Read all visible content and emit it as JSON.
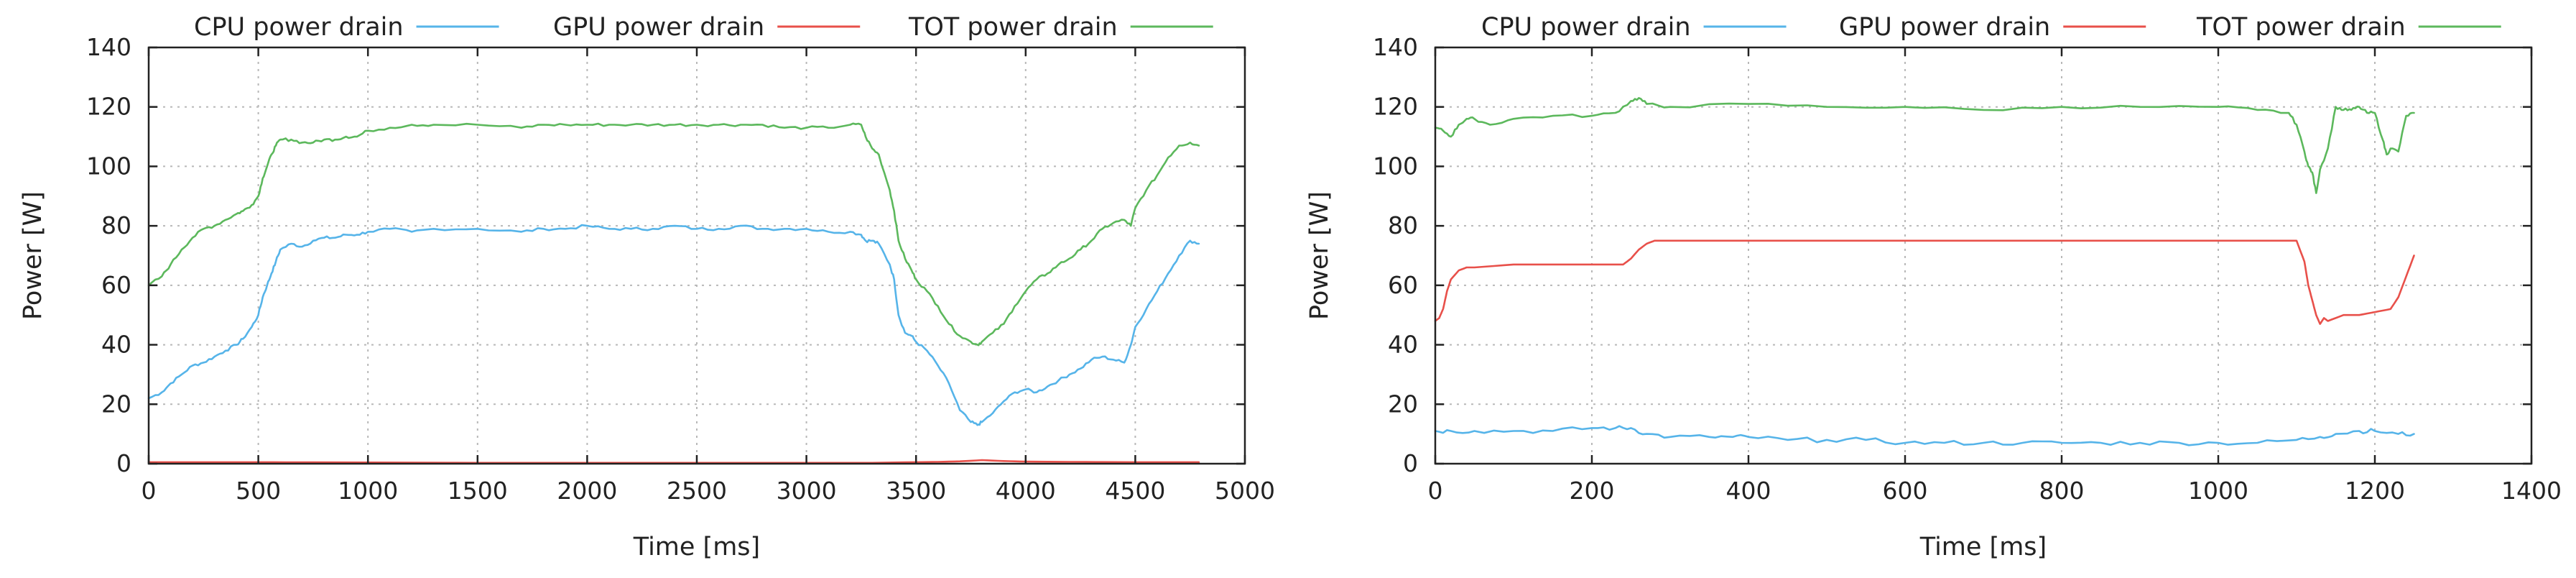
{
  "colors": {
    "cpu": "#56b4e9",
    "gpu": "#e8504a",
    "tot": "#5cb85c"
  },
  "chart_data": [
    {
      "type": "line",
      "title": "",
      "xlabel": "Time [ms]",
      "ylabel": "Power [W]",
      "xlim": [
        0,
        5000
      ],
      "ylim": [
        0,
        140
      ],
      "xticks": [
        0,
        500,
        1000,
        1500,
        2000,
        2500,
        3000,
        3500,
        4000,
        4500,
        5000
      ],
      "yticks": [
        0,
        20,
        40,
        60,
        80,
        100,
        120,
        140
      ],
      "grid": true,
      "legend_position": "top",
      "series": [
        {
          "name": "CPU power drain",
          "color_key": "cpu",
          "x": [
            0,
            60,
            100,
            150,
            200,
            250,
            300,
            350,
            400,
            430,
            470,
            500,
            520,
            540,
            560,
            580,
            600,
            650,
            700,
            750,
            800,
            850,
            900,
            950,
            1000,
            1100,
            1200,
            1300,
            1500,
            1700,
            1800,
            1900,
            2000,
            2100,
            2200,
            2300,
            2400,
            2500,
            2600,
            2700,
            2800,
            2900,
            3000,
            3100,
            3200,
            3250,
            3270,
            3300,
            3330,
            3380,
            3400,
            3420,
            3450,
            3480,
            3500,
            3550,
            3600,
            3650,
            3700,
            3750,
            3780,
            3800,
            3850,
            3900,
            3950,
            4000,
            4050,
            4100,
            4150,
            4200,
            4250,
            4300,
            4350,
            4400,
            4450,
            4480,
            4500,
            4550,
            4600,
            4650,
            4700,
            4750,
            4790
          ],
          "y": [
            22,
            24,
            27,
            30,
            33,
            34,
            36,
            38,
            40,
            42,
            46,
            50,
            56,
            60,
            64,
            68,
            72,
            74,
            73,
            75,
            76,
            76,
            77,
            77,
            78,
            79,
            78,
            79,
            79,
            78,
            79,
            79,
            80,
            79,
            79,
            79,
            80,
            79,
            79,
            80,
            79,
            79,
            79,
            78,
            78,
            77,
            75,
            75,
            74,
            67,
            62,
            50,
            44,
            43,
            41,
            38,
            33,
            27,
            18,
            14,
            13,
            14,
            17,
            21,
            24,
            25,
            24,
            26,
            28,
            30,
            32,
            35,
            36,
            35,
            34,
            40,
            46,
            52,
            58,
            64,
            70,
            75,
            74
          ]
        },
        {
          "name": "GPU power drain",
          "color_key": "gpu",
          "x": [
            0,
            500,
            1000,
            1500,
            2000,
            2500,
            3000,
            3300,
            3500,
            3600,
            3700,
            3800,
            3900,
            4000,
            4200,
            4500,
            4790
          ],
          "y": [
            0.5,
            0.5,
            0.4,
            0.3,
            0.3,
            0.3,
            0.3,
            0.3,
            0.5,
            0.6,
            0.8,
            1.2,
            0.9,
            0.7,
            0.6,
            0.5,
            0.5
          ]
        },
        {
          "name": "TOT power drain",
          "color_key": "tot",
          "x": [
            0,
            60,
            100,
            150,
            200,
            250,
            300,
            350,
            400,
            430,
            470,
            500,
            520,
            540,
            560,
            580,
            600,
            650,
            700,
            750,
            800,
            850,
            900,
            950,
            1000,
            1100,
            1200,
            1300,
            1500,
            1700,
            1800,
            1900,
            2000,
            2100,
            2200,
            2300,
            2400,
            2500,
            2600,
            2700,
            2800,
            2900,
            3000,
            3100,
            3200,
            3250,
            3270,
            3300,
            3330,
            3380,
            3400,
            3420,
            3450,
            3480,
            3500,
            3550,
            3600,
            3650,
            3700,
            3750,
            3780,
            3800,
            3850,
            3900,
            3950,
            4000,
            4050,
            4100,
            4150,
            4200,
            4250,
            4300,
            4350,
            4400,
            4450,
            4480,
            4500,
            4550,
            4600,
            4650,
            4700,
            4750,
            4790
          ],
          "y": [
            60,
            63,
            67,
            72,
            76,
            79,
            80,
            82,
            84,
            85,
            87,
            90,
            96,
            100,
            104,
            107,
            109,
            109,
            108,
            108,
            109,
            109,
            110,
            110,
            112,
            113,
            114,
            114,
            114,
            113,
            114,
            114,
            114,
            114,
            114,
            114,
            114,
            114,
            114,
            114,
            114,
            113,
            113,
            113,
            114,
            114,
            110,
            106,
            104,
            92,
            85,
            75,
            69,
            65,
            62,
            58,
            53,
            47,
            43,
            41,
            40,
            41,
            44,
            47,
            53,
            58,
            62,
            64,
            67,
            69,
            72,
            75,
            79,
            81,
            82,
            80,
            86,
            92,
            97,
            103,
            107,
            108,
            107
          ]
        }
      ]
    },
    {
      "type": "line",
      "title": "",
      "xlabel": "Time [ms]",
      "ylabel": "Power [W]",
      "xlim": [
        0,
        1400
      ],
      "ylim": [
        0,
        140
      ],
      "xticks": [
        0,
        200,
        400,
        600,
        800,
        1000,
        1200,
        1400
      ],
      "yticks": [
        0,
        20,
        40,
        60,
        80,
        100,
        120,
        140
      ],
      "grid": true,
      "legend_position": "top",
      "series": [
        {
          "name": "CPU power drain",
          "color_key": "cpu",
          "x": [
            0,
            20,
            50,
            100,
            150,
            200,
            230,
            250,
            270,
            300,
            350,
            380,
            400,
            450,
            500,
            550,
            600,
            650,
            700,
            750,
            800,
            850,
            900,
            950,
            1000,
            1050,
            1100,
            1130,
            1150,
            1180,
            1200,
            1230,
            1250
          ],
          "y": [
            11,
            11,
            11,
            11,
            11,
            12,
            12,
            12,
            10,
            9,
            9,
            9,
            9,
            8,
            8,
            8,
            7,
            7,
            7,
            7,
            7,
            7,
            7,
            7,
            7,
            7,
            8,
            9,
            10,
            11,
            11,
            10,
            10
          ],
          "noise": 0.8
        },
        {
          "name": "GPU power drain",
          "color_key": "gpu",
          "x": [
            0,
            5,
            10,
            15,
            20,
            30,
            40,
            50,
            100,
            150,
            200,
            240,
            250,
            260,
            270,
            280,
            290,
            300,
            400,
            500,
            600,
            700,
            800,
            900,
            1000,
            1050,
            1100,
            1110,
            1115,
            1120,
            1125,
            1130,
            1135,
            1140,
            1160,
            1180,
            1200,
            1220,
            1230,
            1240,
            1250
          ],
          "y": [
            48,
            49,
            52,
            58,
            62,
            65,
            66,
            66,
            67,
            67,
            67,
            67,
            69,
            72,
            74,
            75,
            75,
            75,
            75,
            75,
            75,
            75,
            75,
            75,
            75,
            75,
            75,
            68,
            60,
            55,
            50,
            47,
            49,
            48,
            50,
            50,
            51,
            52,
            56,
            63,
            70
          ]
        },
        {
          "name": "TOT power drain",
          "color_key": "tot",
          "x": [
            0,
            10,
            20,
            30,
            40,
            50,
            70,
            100,
            150,
            200,
            230,
            250,
            260,
            270,
            300,
            400,
            500,
            600,
            700,
            800,
            900,
            1000,
            1050,
            1090,
            1100,
            1110,
            1115,
            1120,
            1125,
            1130,
            1140,
            1150,
            1160,
            1170,
            1180,
            1190,
            1200,
            1210,
            1215,
            1220,
            1230,
            1240,
            1250
          ],
          "y": [
            113,
            112,
            110,
            114,
            116,
            116,
            114,
            116,
            117,
            117,
            118,
            122,
            123,
            121,
            120,
            121,
            120,
            120,
            119,
            120,
            120,
            120,
            119,
            118,
            114,
            105,
            100,
            98,
            91,
            99,
            106,
            120,
            119,
            119,
            120,
            118,
            118,
            109,
            104,
            106,
            105,
            117,
            118
          ]
        }
      ]
    }
  ]
}
